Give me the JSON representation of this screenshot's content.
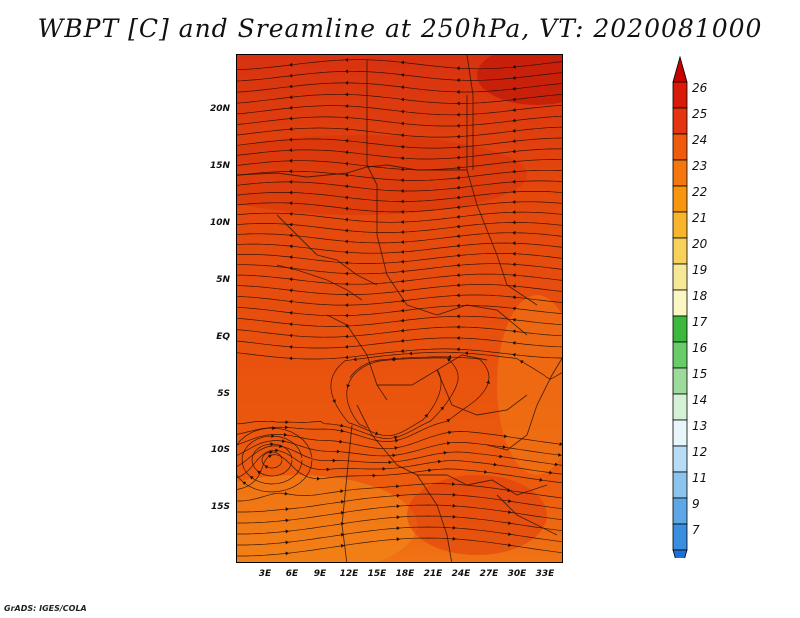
{
  "title": "WBPT [C] and Sreamline at 250hPa, VT: 2020081000",
  "credit": "GrADS: IGES/COLA",
  "map": {
    "variable": "WBPT",
    "units": "C",
    "level": "250hPa",
    "valid_time": "2020081000",
    "lon_ticks": [
      "3E",
      "6E",
      "9E",
      "12E",
      "15E",
      "18E",
      "21E",
      "24E",
      "27E",
      "30E",
      "33E"
    ],
    "lat_ticks": [
      "20N",
      "15N",
      "10N",
      "5N",
      "EQ",
      "5S",
      "10S",
      "15S"
    ],
    "field_colors": [
      "#e8500e",
      "#ef5a0d",
      "#de3a0c",
      "#cf2a08",
      "#f47a14"
    ]
  },
  "colorbar": {
    "levels": [
      "26",
      "25",
      "24",
      "23",
      "22",
      "21",
      "20",
      "19",
      "18",
      "17",
      "16",
      "15",
      "14",
      "13",
      "12",
      "11",
      "9",
      "7"
    ],
    "colors": [
      "#c80000",
      "#d81a08",
      "#e53410",
      "#ef5a0d",
      "#f4760c",
      "#f7960e",
      "#f8b52c",
      "#f7d25a",
      "#f7e898",
      "#fbf6c2",
      "#3cb83c",
      "#68cc68",
      "#9ddb9d",
      "#d6f2d6",
      "#e8f6fb",
      "#b8dcf5",
      "#8cc4ee",
      "#5ea6e6",
      "#3a8ee0",
      "#1e70d8"
    ]
  }
}
